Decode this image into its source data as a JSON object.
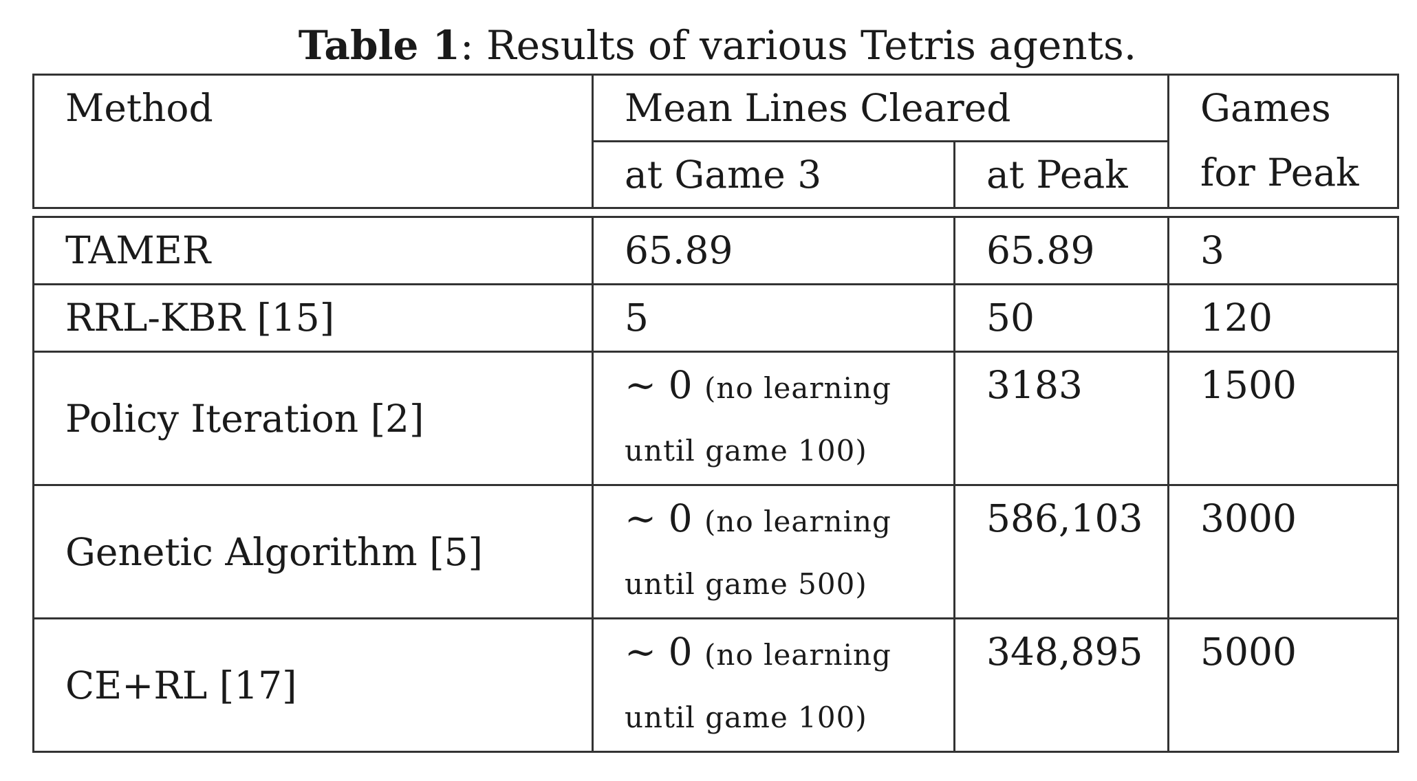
{
  "caption": {
    "label": "Table 1",
    "text": ": Results of various Tetris agents."
  },
  "header": {
    "method": "Method",
    "mean_lines_cleared": "Mean Lines Cleared",
    "at_game_3": "at Game 3",
    "at_peak": "at Peak",
    "games_line1": "Games",
    "games_line2": "for Peak"
  },
  "rows": [
    {
      "method": "TAMER",
      "game3": "65.89",
      "peak": "65.89",
      "games": "3"
    },
    {
      "method": "RRL-KBR [15]",
      "game3": "5",
      "peak": "50",
      "games": "120"
    },
    {
      "method": "Policy Iteration [2]",
      "game3_approx": "∼ 0",
      "game3_note_line1": "(no learning",
      "game3_note_line2": "until game 100)",
      "peak": "3183",
      "games": "1500"
    },
    {
      "method": "Genetic Algorithm [5]",
      "game3_approx": "∼ 0",
      "game3_note_line1": "(no learning",
      "game3_note_line2": "until game 500)",
      "peak": "586,103",
      "games": "3000"
    },
    {
      "method": "CE+RL [17]",
      "game3_approx": "∼ 0",
      "game3_note_line1": "(no learning",
      "game3_note_line2": "until game 100)",
      "peak": "348,895",
      "games": "5000"
    }
  ]
}
